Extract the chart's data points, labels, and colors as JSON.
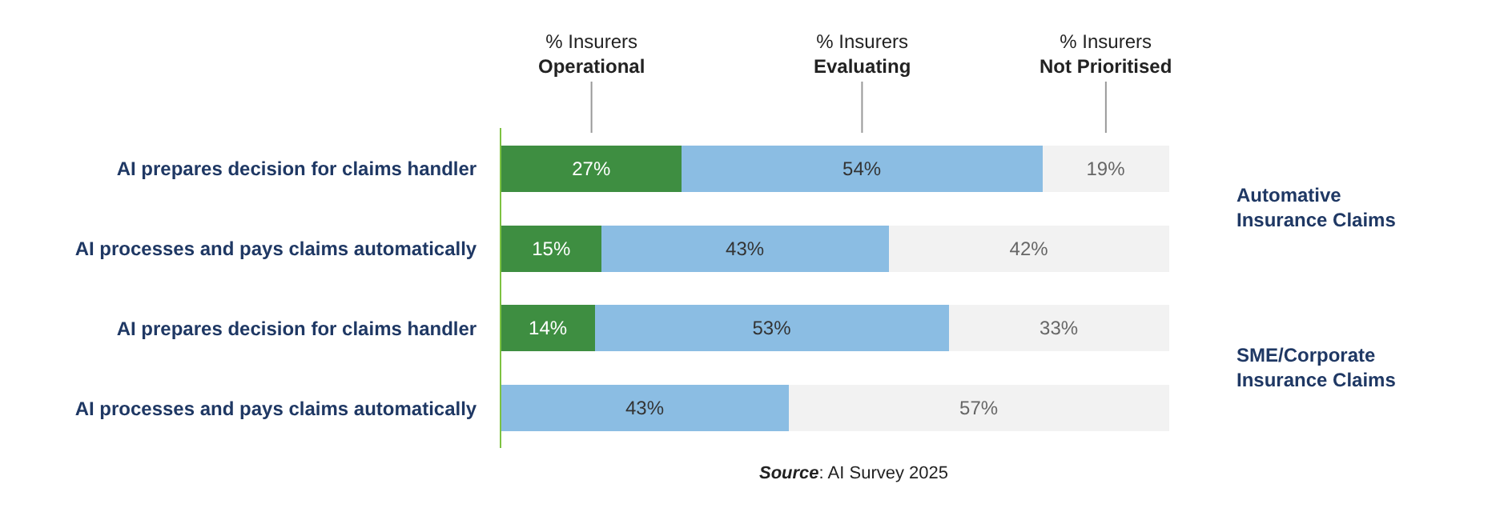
{
  "chart_data": {
    "type": "bar",
    "orientation": "horizontal",
    "stacked": true,
    "categories": [
      "AI prepares decision for claims handler",
      "AI processes and pays claims automatically",
      "AI prepares decision for claims handler",
      "AI processes and pays claims automatically"
    ],
    "series": [
      {
        "name": "% Insurers\nOperational",
        "color": "#3e8e41",
        "values": [
          27,
          15,
          14,
          null
        ],
        "value_labels": [
          "27%",
          "15%",
          "14%",
          null
        ]
      },
      {
        "name": "% Insurers\nEvaluating",
        "color": "#8bbde3",
        "values": [
          54,
          43,
          53,
          43
        ],
        "value_labels": [
          "54%",
          "43%",
          "53%",
          "43%"
        ]
      },
      {
        "name": "% Insurers\nNot Prioritised",
        "color": "#f2f2f2",
        "values": [
          19,
          42,
          33,
          57
        ],
        "value_labels": [
          "19%",
          "42%",
          "33%",
          "57%"
        ]
      }
    ],
    "annotations": [
      "Automative\nInsurance Claims",
      "SME/Corporate\nInsurance Claims",
      "Source: AI Survey 2025"
    ],
    "legend": false,
    "tick_labels": "y"
  }
}
